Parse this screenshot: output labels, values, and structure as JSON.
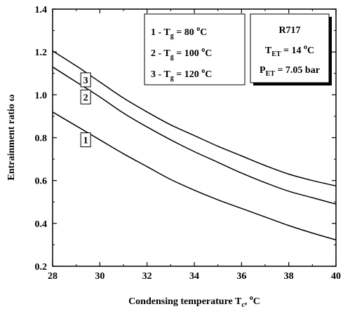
{
  "chart_data": {
    "type": "line",
    "xlabel": {
      "main": "Condensing temperature T",
      "sub": "c",
      "tail": ", ",
      "sup": "o",
      "unit": "C"
    },
    "ylabel": {
      "main": "Entrainment ratio ",
      "symbol": "ω"
    },
    "xlim": [
      28,
      40
    ],
    "ylim": [
      0.2,
      1.4
    ],
    "x_ticks": [
      28,
      30,
      32,
      34,
      36,
      38,
      40
    ],
    "y_ticks": [
      0.2,
      0.4,
      0.6,
      0.8,
      1.0,
      1.2,
      1.4
    ],
    "y_tick_labels": [
      "0.2",
      "0.4",
      "0.6",
      "0.8",
      "1.0",
      "1.2",
      "1.4"
    ],
    "grid": false,
    "series": [
      {
        "tag": "1",
        "x": [
          28,
          29,
          30,
          31,
          32,
          33,
          34,
          35,
          36,
          37,
          38,
          39,
          40
        ],
        "values": [
          0.92,
          0.855,
          0.79,
          0.725,
          0.665,
          0.605,
          0.555,
          0.51,
          0.47,
          0.43,
          0.39,
          0.355,
          0.323
        ]
      },
      {
        "tag": "2",
        "x": [
          28,
          29,
          30,
          31,
          32,
          33,
          34,
          35,
          36,
          37,
          38,
          39,
          40
        ],
        "values": [
          1.13,
          1.06,
          0.99,
          0.915,
          0.85,
          0.79,
          0.735,
          0.685,
          0.635,
          0.59,
          0.55,
          0.52,
          0.49
        ]
      },
      {
        "tag": "3",
        "x": [
          28,
          29,
          30,
          31,
          32,
          33,
          34,
          35,
          36,
          37,
          38,
          39,
          40
        ],
        "values": [
          1.205,
          1.135,
          1.06,
          0.985,
          0.92,
          0.86,
          0.81,
          0.76,
          0.715,
          0.67,
          0.63,
          0.6,
          0.575
        ]
      }
    ],
    "curve_tags": [
      {
        "label": "1",
        "x": 29.4,
        "y": 0.79
      },
      {
        "label": "2",
        "x": 29.4,
        "y": 0.99
      },
      {
        "label": "3",
        "x": 29.4,
        "y": 1.07
      }
    ],
    "legend": {
      "placement": "top-middle",
      "entries": [
        {
          "prefix": "1 - T",
          "sub": "g",
          "eq": " = 80 ",
          "sup": "o",
          "unit": "C"
        },
        {
          "prefix": "2 - T",
          "sub": "g",
          "eq": " = 100 ",
          "sup": "o",
          "unit": "C"
        },
        {
          "prefix": "3 - T",
          "sub": "g",
          "eq": " = 120 ",
          "sup": "o",
          "unit": "C"
        }
      ]
    },
    "conditions": {
      "placement": "top-right",
      "title": "R717",
      "line1": {
        "prefix": "T",
        "sub": "ET",
        "eq": " = 14 ",
        "sup": "o",
        "unit": "C"
      },
      "line2": {
        "prefix": "P",
        "sub": "ET",
        "eq": " = 7.05 bar"
      }
    }
  }
}
